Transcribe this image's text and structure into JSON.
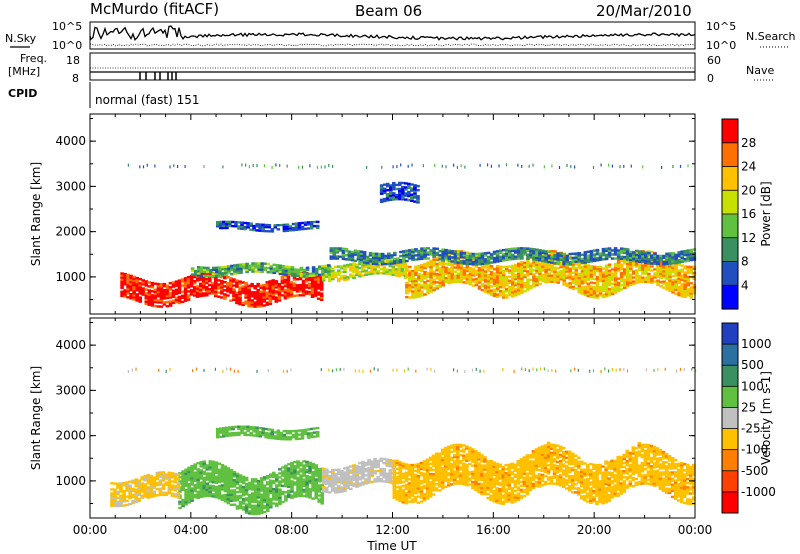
{
  "header": {
    "station": "McMurdo (fitACF)",
    "beam": "Beam 06",
    "date": "20/Mar/2010"
  },
  "top_panels": {
    "nsky_label": "N.Sky",
    "nsearch_label": "N.Search",
    "n_ticks": [
      "10^5",
      "10^0"
    ],
    "freq_label": "Freq.",
    "freq_unit": "[MHz]",
    "freq_ticks": [
      "18",
      "8"
    ],
    "nave_label": "Nave",
    "nave_ticks": [
      "60",
      "0"
    ],
    "cpid_label": "CPID",
    "cpid_value": "normal (fast) 151"
  },
  "chart_data": [
    {
      "type": "heatmap",
      "name": "power",
      "ylabel": "Slant Range [km]",
      "xlabel": "Time UT",
      "x_ticks": [
        "00:00",
        "04:00",
        "08:00",
        "12:00",
        "16:00",
        "20:00",
        "00:00"
      ],
      "x_range_hours": [
        0,
        24
      ],
      "y_ticks": [
        1000,
        2000,
        3000,
        4000
      ],
      "y_range_km": [
        180,
        4600
      ],
      "colorbar": {
        "label": "Power [dB]",
        "ticks": [
          "4",
          "8",
          "12",
          "16",
          "20",
          "24",
          "28"
        ],
        "colors": [
          "#0000ff",
          "#2050c0",
          "#3a9060",
          "#60c040",
          "#c8e000",
          "#ffc000",
          "#ff7000",
          "#ff0000"
        ],
        "range": [
          0,
          32
        ]
      },
      "bands": [
        {
          "from_h": 1.2,
          "to_h": 9.2,
          "center_km": 700,
          "width_km": 500,
          "level": 30
        },
        {
          "from_h": 9.2,
          "to_h": 12.5,
          "center_km": 1150,
          "width_km": 350,
          "level": 18
        },
        {
          "from_h": 12.5,
          "to_h": 24,
          "center_km": 1050,
          "width_km": 700,
          "level": 22
        },
        {
          "from_h": 4.0,
          "to_h": 9.5,
          "center_km": 1150,
          "width_km": 200,
          "level": 12
        },
        {
          "from_h": 9.5,
          "to_h": 24,
          "center_km": 1450,
          "width_km": 250,
          "level": 9
        },
        {
          "from_h": 5.0,
          "to_h": 9.0,
          "center_km": 2100,
          "width_km": 150,
          "level": 6
        },
        {
          "from_h": 11.5,
          "to_h": 13.0,
          "center_km": 2800,
          "width_km": 400,
          "level": 6
        }
      ]
    },
    {
      "type": "heatmap",
      "name": "velocity",
      "ylabel": "Slant Range [km]",
      "xlabel": "Time UT",
      "x_ticks": [
        "00:00",
        "04:00",
        "08:00",
        "12:00",
        "16:00",
        "20:00",
        "00:00"
      ],
      "x_range_hours": [
        0,
        24
      ],
      "y_ticks": [
        1000,
        2000,
        3000,
        4000
      ],
      "y_range_km": [
        180,
        4600
      ],
      "colorbar": {
        "label": "Velocity [m s-1]",
        "ticks": [
          "1000",
          "500",
          "100",
          "25",
          "-25",
          "-100",
          "-500",
          "-1000"
        ],
        "colors": [
          "#2040c0",
          "#2a70a0",
          "#3a9060",
          "#60c040",
          "#c0c0c0",
          "#ffc000",
          "#ff8000",
          "#ff4000",
          "#ff0000"
        ],
        "range": [
          -1200,
          1200
        ]
      },
      "bands": [
        {
          "from_h": 3.5,
          "to_h": 9.2,
          "center_km": 850,
          "width_km": 800,
          "level": 300
        },
        {
          "from_h": 9.2,
          "to_h": 12.0,
          "center_km": 1100,
          "width_km": 500,
          "level": -30
        },
        {
          "from_h": 12.0,
          "to_h": 24,
          "center_km": 1150,
          "width_km": 900,
          "level": -300
        },
        {
          "from_h": 0.8,
          "to_h": 3.5,
          "center_km": 800,
          "width_km": 500,
          "level": -200
        },
        {
          "from_h": 5.0,
          "to_h": 9.0,
          "center_km": 2050,
          "width_km": 200,
          "level": 300
        }
      ]
    }
  ]
}
